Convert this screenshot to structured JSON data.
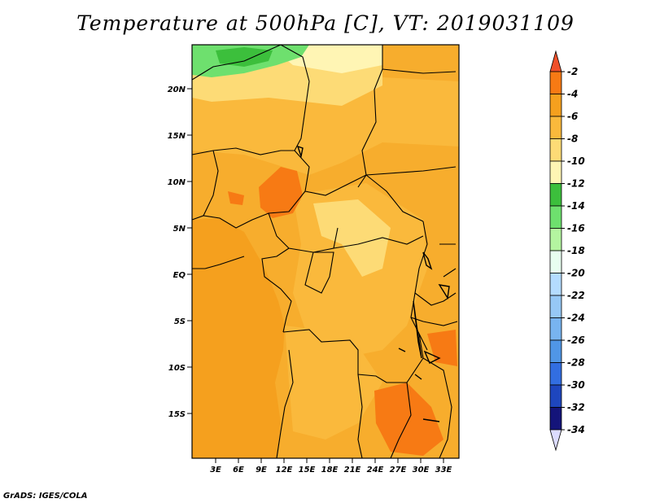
{
  "title": "Temperature at 500hPa [C], VT: 2019031109",
  "credit": "GrADS: IGES/COLA",
  "map": {
    "lat_labels": [
      "20N",
      "15N",
      "10N",
      "5N",
      "EQ",
      "5S",
      "10S",
      "15S"
    ],
    "lon_labels": [
      "3E",
      "6E",
      "9E",
      "12E",
      "15E",
      "18E",
      "21E",
      "24E",
      "27E",
      "30E",
      "33E"
    ]
  },
  "colorbar": {
    "labels": [
      "-2",
      "-4",
      "-6",
      "-8",
      "-10",
      "-12",
      "-14",
      "-16",
      "-18",
      "-20",
      "-22",
      "-24",
      "-26",
      "-28",
      "-30",
      "-32",
      "-34"
    ],
    "colors": [
      "#f0502a",
      "#f77a14",
      "#f5a01e",
      "#fab93c",
      "#fddb76",
      "#fff5b4",
      "#3cbf3c",
      "#6ee06e",
      "#b4f5a0",
      "#e8fff0",
      "#b4dcff",
      "#96c8f5",
      "#78b4f0",
      "#5096e6",
      "#326ee1",
      "#1e46be",
      "#14147a",
      "#dcdcff"
    ]
  },
  "colors": {
    "ocean": "#f5a01e",
    "land_base": "#f7ad2d",
    "warm": "#f77a14",
    "cool": "#fab93c",
    "pale": "#fddb76",
    "green": "#6ee06e",
    "dark_green": "#3cbf3c"
  }
}
